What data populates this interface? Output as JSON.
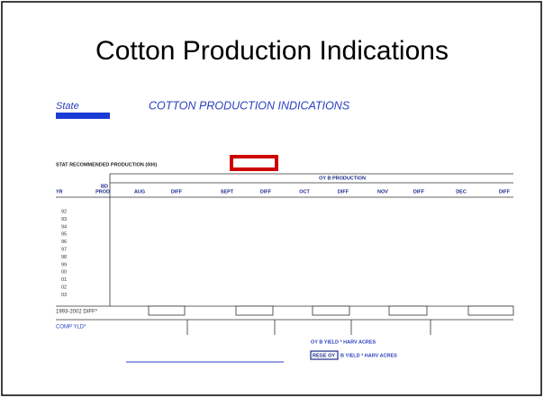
{
  "title": "Cotton Production Indications",
  "form": {
    "state": "State",
    "form_title": "COTTON PRODUCTION INDICATIONS",
    "stat_label": "STAT RECOMMENDED PRODUCTION (000)",
    "section": "OY B PRODUCTION",
    "yr_header": "YR",
    "bd_header": [
      "BD",
      "PROD"
    ],
    "columns": [
      "AUG",
      "DIFF",
      "SEPT",
      "DIFF",
      "OCT",
      "DIFF",
      "NOV",
      "DIFF",
      "DEC",
      "DIFF"
    ],
    "years": [
      "92",
      "93",
      "94",
      "95",
      "96",
      "97",
      "98",
      "99",
      "00",
      "01",
      "02",
      "03"
    ],
    "diff_label": "1993-2002 DIFF*",
    "comp_label": "COMP YLD*",
    "formula1": "OY B YIELD * HARV ACRES",
    "formula2_box": "REGE OY",
    "formula2_text": "B YIELD * HARV ACRES"
  }
}
